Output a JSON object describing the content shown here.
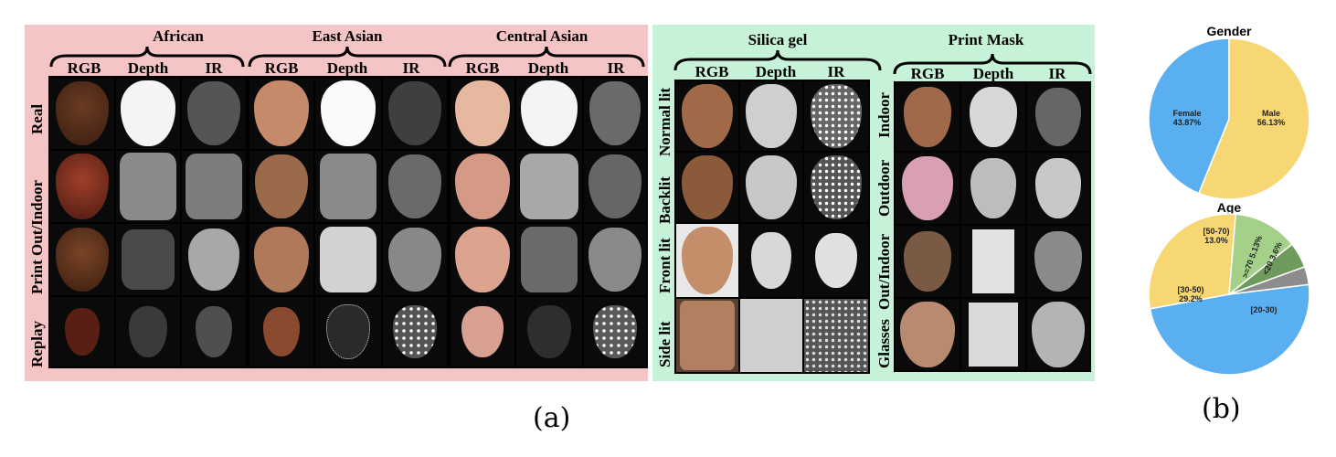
{
  "panel_a": {
    "caption": "(a)",
    "groups": [
      {
        "title": "African",
        "columns": [
          "RGB",
          "Depth",
          "IR"
        ]
      },
      {
        "title": "East Asian",
        "columns": [
          "RGB",
          "Depth",
          "IR"
        ]
      },
      {
        "title": "Central Asian",
        "columns": [
          "RGB",
          "Depth",
          "IR"
        ]
      },
      {
        "title": "Silica gel",
        "columns": [
          "RGB",
          "Depth",
          "IR"
        ]
      },
      {
        "title": "Print Mask",
        "columns": [
          "RGB",
          "Depth",
          "IR"
        ]
      }
    ],
    "left_rows": [
      "Real",
      "Print Out/Indoor",
      "Replay"
    ],
    "silica_rows": [
      "Normal lit",
      "Backlit",
      "Front lit",
      "Side lit"
    ],
    "mask_rows": [
      "Indoor",
      "Outdoor",
      "Out/Indoor",
      "Glasses"
    ]
  },
  "panel_b": {
    "caption": "(b)",
    "colors": {
      "blue": "#5aaff0",
      "yellow": "#f7d774",
      "green": "#a4d08a",
      "darkgreen": "#6e9a5c",
      "gray": "#8c8c8c"
    },
    "chart_data": [
      {
        "type": "pie",
        "title": "Gender",
        "categories": [
          "Female",
          "Male"
        ],
        "values": [
          43.87,
          56.13
        ],
        "labels": [
          "Female\n43.87%",
          "Male\n56.13%"
        ]
      },
      {
        "type": "pie",
        "title": "Age",
        "categories": [
          "[20-30)",
          "[30-50)",
          "[50-70)",
          ">=70",
          "<20"
        ],
        "values": [
          49.07,
          29.2,
          13.0,
          5.13,
          3.6
        ],
        "labels": [
          "[20-30)",
          "[30-50)\n29.2%",
          "[50-70)\n13.0%",
          ">=70 5.13%",
          "<20 3.6%"
        ]
      }
    ]
  }
}
